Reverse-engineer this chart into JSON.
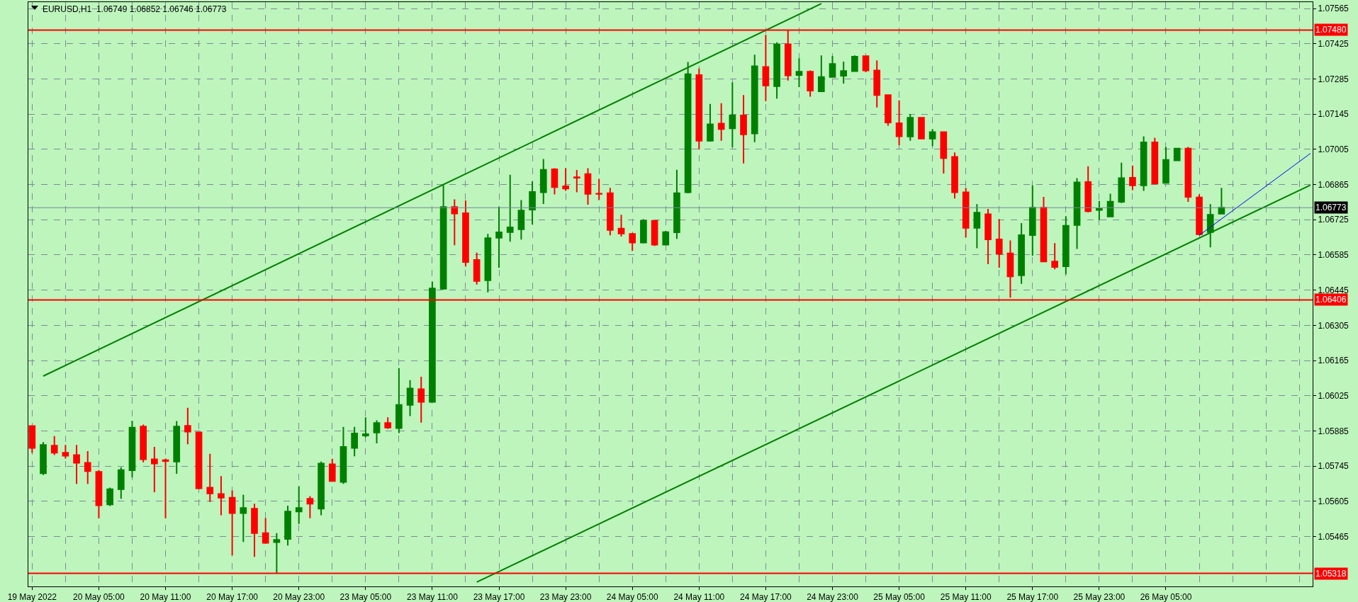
{
  "chart_data": {
    "type": "candlestick",
    "title": "EURUSD,H1  1.06749 1.06852 1.06746 1.06773",
    "categories": [
      "19 May 2022",
      null,
      null,
      null,
      null,
      null,
      "20 May 05:00",
      null,
      null,
      null,
      null,
      null,
      "20 May 11:00",
      null,
      null,
      null,
      null,
      null,
      "20 May 17:00",
      null,
      null,
      null,
      null,
      null,
      "20 May 23:00",
      null,
      null,
      null,
      null,
      null,
      "23 May 05:00",
      null,
      null,
      null,
      null,
      null,
      "23 May 11:00",
      null,
      null,
      null,
      null,
      null,
      "23 May 17:00",
      null,
      null,
      null,
      null,
      null,
      "23 May 23:00",
      null,
      null,
      null,
      null,
      null,
      "24 May 05:00",
      null,
      null,
      null,
      null,
      null,
      "24 May 11:00",
      null,
      null,
      null,
      null,
      null,
      "24 May 17:00",
      null,
      null,
      null,
      null,
      null,
      "24 May 23:00",
      null,
      null,
      null,
      null,
      null,
      "25 May 05:00",
      null,
      null,
      null,
      null,
      null,
      "25 May 11:00",
      null,
      null,
      null,
      null,
      null,
      "25 May 17:00",
      null,
      null,
      null,
      null,
      null,
      "25 May 23:00",
      null,
      null,
      null,
      null,
      null,
      "26 May 05:00",
      null,
      null,
      null,
      null,
      null,
      null,
      null,
      null,
      null,
      null,
      null,
      null,
      null
    ],
    "colors": [
      "#ff0000",
      "#008000",
      "#ff0000",
      "#ff0000",
      "#ff0000",
      "#ff0000",
      "#ff0000",
      "#008000",
      "#008000",
      "#008000",
      "#ff0000",
      "#ff0000",
      "#ff0000",
      "#008000",
      "#ff0000",
      "#ff0000",
      "#ff0000",
      "#ff0000",
      "#ff0000",
      "#008000",
      "#ff0000",
      "#ff0000",
      "#008000",
      "#008000",
      "#008000",
      "#ff0000",
      "#008000",
      "#ff0000",
      "#008000",
      "#008000",
      "#008000",
      "#008000",
      "#ff0000",
      "#008000",
      "#008000",
      "#ff0000",
      "#008000",
      "#008000",
      "#ff0000",
      "#ff0000",
      "#ff0000",
      "#008000",
      "#008000",
      "#008000",
      "#008000",
      "#008000",
      "#008000",
      "#ff0000",
      "#ff0000",
      "#ff0000",
      "#ff0000",
      "#ff0000",
      "#ff0000",
      "#ff0000",
      "#ff0000",
      "#008000",
      "#ff0000",
      "#008000",
      "#008000",
      "#008000",
      "#ff0000",
      "#008000",
      "#ff0000",
      "#008000",
      "#ff0000",
      "#008000",
      "#ff0000",
      "#008000",
      "#ff0000",
      "#008000",
      "#ff0000",
      "#008000",
      "#008000",
      "#008000",
      "#008000",
      "#ff0000",
      "#ff0000",
      "#ff0000",
      "#ff0000",
      "#008000",
      "#ff0000",
      "#008000",
      "#ff0000",
      "#ff0000",
      "#ff0000",
      "#008000",
      "#ff0000",
      "#ff0000",
      "#ff0000",
      "#008000",
      "#008000",
      "#ff0000",
      "#ff0000",
      "#008000",
      "#008000",
      "#ff0000",
      "#008000",
      "#008000",
      "#008000",
      "#ff0000",
      "#008000",
      "#ff0000",
      "#008000",
      "#008000",
      "#ff0000",
      "#ff0000",
      "#008000",
      "#008000",
      null,
      null,
      null,
      null,
      null,
      null,
      null,
      null
    ],
    "ohlc": [
      [
        1.05904,
        1.05906,
        1.05797,
        1.05817
      ],
      [
        1.05716,
        1.0584,
        1.05709,
        1.05829
      ],
      [
        1.05826,
        1.05864,
        1.05789,
        1.05798
      ],
      [
        1.05798,
        1.05829,
        1.05775,
        1.05786
      ],
      [
        1.05789,
        1.05829,
        1.05674,
        1.05758
      ],
      [
        1.05758,
        1.05804,
        1.05674,
        1.05725
      ],
      [
        1.05722,
        1.05729,
        1.05537,
        1.05589
      ],
      [
        1.05592,
        1.05659,
        1.05586,
        1.05653
      ],
      [
        1.05653,
        1.0574,
        1.05615,
        1.05729
      ],
      [
        1.05728,
        1.05925,
        1.057,
        1.05898
      ],
      [
        1.05902,
        1.0591,
        1.0576,
        1.05772
      ],
      [
        1.05772,
        1.05821,
        1.05641,
        1.05755
      ],
      [
        1.05768,
        1.05775,
        1.05537,
        1.05765
      ],
      [
        1.05763,
        1.05924,
        1.05714,
        1.05902
      ],
      [
        1.05905,
        1.05977,
        1.05832,
        1.05882
      ],
      [
        1.05879,
        1.05882,
        1.05653,
        1.05656
      ],
      [
        1.05659,
        1.05794,
        1.05602,
        1.05636
      ],
      [
        1.05634,
        1.05705,
        1.05549,
        1.05619
      ],
      [
        1.05619,
        1.05648,
        1.0539,
        1.05558
      ],
      [
        1.05558,
        1.05631,
        1.05443,
        1.05578
      ],
      [
        1.05575,
        1.05595,
        1.05384,
        1.05478
      ],
      [
        1.05478,
        1.05538,
        1.05436,
        1.05439
      ],
      [
        1.05442,
        1.05478,
        1.05318,
        1.05451
      ],
      [
        1.05455,
        1.05587,
        1.05429,
        1.05564
      ],
      [
        1.05564,
        1.05665,
        1.05515,
        1.05578
      ],
      [
        1.05615,
        1.05625,
        1.05537,
        1.05595
      ],
      [
        1.05575,
        1.05763,
        1.05549,
        1.05755
      ],
      [
        1.05752,
        1.05774,
        1.05683,
        1.05685
      ],
      [
        1.05682,
        1.05901,
        1.05674,
        1.05821
      ],
      [
        1.05817,
        1.05901,
        1.05784,
        1.05875
      ],
      [
        1.05866,
        1.05939,
        1.05859,
        1.05872
      ],
      [
        1.05878,
        1.05927,
        1.05835,
        1.05916
      ],
      [
        1.05916,
        1.05939,
        1.05893,
        1.05898
      ],
      [
        1.05896,
        1.06135,
        1.05876,
        1.05988
      ],
      [
        1.05988,
        1.06087,
        1.05944,
        1.06054
      ],
      [
        1.06051,
        1.061,
        1.05918,
        1.06
      ],
      [
        1.06,
        1.06479,
        1.06,
        1.06452
      ],
      [
        1.0645,
        1.06863,
        1.06447,
        1.06776
      ],
      [
        1.06776,
        1.06806,
        1.06624,
        1.0675
      ],
      [
        1.06751,
        1.06802,
        1.06539,
        1.06557
      ],
      [
        1.06565,
        1.06594,
        1.06467,
        1.06481
      ],
      [
        1.06484,
        1.06669,
        1.06436,
        1.06652
      ],
      [
        1.06653,
        1.06777,
        1.06534,
        1.06675
      ],
      [
        1.06676,
        1.06904,
        1.06638,
        1.06695
      ],
      [
        1.06687,
        1.06803,
        1.06646,
        1.06762
      ],
      [
        1.06765,
        1.06877,
        1.06707,
        1.06836
      ],
      [
        1.06834,
        1.06967,
        1.06788,
        1.06924
      ],
      [
        1.06926,
        1.0693,
        1.06826,
        1.06855
      ],
      [
        1.06858,
        1.0693,
        1.0684,
        1.06849
      ],
      [
        1.06894,
        1.06923,
        1.06834,
        1.06892
      ],
      [
        1.06907,
        1.0693,
        1.06785,
        1.06828
      ],
      [
        1.06829,
        1.06888,
        1.06803,
        1.06828
      ],
      [
        1.06831,
        1.06852,
        1.06663,
        1.06684
      ],
      [
        1.0669,
        1.06745,
        1.06658,
        1.0667
      ],
      [
        1.06669,
        1.06673,
        1.06601,
        1.06634
      ],
      [
        1.06634,
        1.06727,
        1.06631,
        1.06721
      ],
      [
        1.06721,
        1.06724,
        1.06621,
        1.06626
      ],
      [
        1.06626,
        1.06681,
        1.06624,
        1.06676
      ],
      [
        1.06675,
        1.06924,
        1.06649,
        1.06831
      ],
      [
        1.06834,
        1.07353,
        1.0683,
        1.07304
      ],
      [
        1.07301,
        1.07327,
        1.07005,
        1.07039
      ],
      [
        1.07039,
        1.07186,
        1.07036,
        1.07105
      ],
      [
        1.07108,
        1.07189,
        1.07039,
        1.07086
      ],
      [
        1.07089,
        1.07272,
        1.07013,
        1.0714
      ],
      [
        1.0714,
        1.07221,
        1.06949,
        1.07065
      ],
      [
        1.07068,
        1.07382,
        1.07034,
        1.07336
      ],
      [
        1.07333,
        1.07461,
        1.07197,
        1.07259
      ],
      [
        1.07256,
        1.07431,
        1.07207,
        1.07423
      ],
      [
        1.07423,
        1.0748,
        1.07279,
        1.07299
      ],
      [
        1.07301,
        1.07368,
        1.07253,
        1.07314
      ],
      [
        1.07314,
        1.07319,
        1.07215,
        1.07239
      ],
      [
        1.07236,
        1.07379,
        1.07235,
        1.07293
      ],
      [
        1.07293,
        1.07377,
        1.07291,
        1.07345
      ],
      [
        1.07298,
        1.07354,
        1.07267,
        1.07317
      ],
      [
        1.07316,
        1.07379,
        1.07314,
        1.07374
      ],
      [
        1.07376,
        1.07377,
        1.07313,
        1.07319
      ],
      [
        1.07319,
        1.07359,
        1.07172,
        1.07221
      ],
      [
        1.07221,
        1.07224,
        1.07099,
        1.07112
      ],
      [
        1.07109,
        1.072,
        1.07022,
        1.07057
      ],
      [
        1.07056,
        1.07146,
        1.07039,
        1.07131
      ],
      [
        1.07131,
        1.07134,
        1.07045,
        1.07048
      ],
      [
        1.07048,
        1.07086,
        1.07018,
        1.07074
      ],
      [
        1.07074,
        1.07076,
        1.06909,
        1.0697
      ],
      [
        1.06975,
        1.06993,
        1.0681,
        1.06834
      ],
      [
        1.06834,
        1.06852,
        1.06655,
        1.06693
      ],
      [
        1.06693,
        1.06787,
        1.06612,
        1.06753
      ],
      [
        1.06747,
        1.06768,
        1.06548,
        1.06647
      ],
      [
        1.06647,
        1.06727,
        1.06534,
        1.06589
      ],
      [
        1.06591,
        1.06643,
        1.06415,
        1.065
      ],
      [
        1.06504,
        1.06712,
        1.0647,
        1.06664
      ],
      [
        1.06664,
        1.06862,
        1.06582,
        1.06773
      ],
      [
        1.06773,
        1.06816,
        1.06556,
        1.06559
      ],
      [
        1.06559,
        1.06632,
        1.06528,
        1.06537
      ],
      [
        1.0654,
        1.06739,
        1.06508,
        1.06701
      ],
      [
        1.06704,
        1.06891,
        1.06609,
        1.06874
      ],
      [
        1.06875,
        1.06938,
        1.06754,
        1.06759
      ],
      [
        1.06764,
        1.068,
        1.06724,
        1.06768
      ],
      [
        1.06738,
        1.06829,
        1.06735,
        1.06797
      ],
      [
        1.06796,
        1.06952,
        1.06791,
        1.06891
      ],
      [
        1.06892,
        1.06941,
        1.06843,
        1.06862
      ],
      [
        1.06862,
        1.07057,
        1.0684,
        1.07033
      ],
      [
        1.07033,
        1.07051,
        1.06866,
        1.06869
      ],
      [
        1.06872,
        1.07015,
        1.06871,
        1.06963
      ],
      [
        1.06961,
        1.07011,
        1.06958,
        1.07008
      ],
      [
        1.07008,
        1.07015,
        1.06796,
        1.06816
      ],
      [
        1.06814,
        1.06826,
        1.06663,
        1.06667
      ],
      [
        1.06676,
        1.06787,
        1.06615,
        1.06745
      ],
      [
        1.06749,
        1.06852,
        1.06746,
        1.06773
      ],
      null,
      null,
      null,
      null,
      null,
      null,
      null,
      null
    ],
    "series": [
      {
        "type": "line",
        "color": "#008000",
        "values": [
          null,
          1.06103,
          null,
          null,
          null,
          null,
          null,
          null,
          null,
          null,
          null,
          null,
          null,
          null,
          null,
          null,
          null,
          null,
          null,
          null,
          null,
          null,
          null,
          null,
          null,
          null,
          null,
          null,
          null,
          null,
          null,
          null,
          null,
          null,
          null,
          null,
          null,
          null,
          null,
          null,
          null,
          null,
          null,
          null,
          null,
          null,
          null,
          null,
          null,
          null,
          null,
          null,
          null,
          null,
          null,
          null,
          null,
          null,
          null,
          null,
          null,
          null,
          null,
          null,
          null,
          null,
          null,
          null,
          null,
          null,
          null,
          1.07585,
          null,
          null,
          null,
          null,
          null,
          null,
          null,
          null,
          null,
          null,
          null,
          null,
          null,
          null,
          null,
          null,
          null,
          null,
          null,
          null,
          null,
          null,
          null,
          null,
          null,
          null,
          null,
          null,
          null,
          null,
          null,
          null,
          null,
          null,
          null,
          null,
          null,
          null,
          null,
          null,
          null,
          null,
          null,
          null
        ]
      },
      {
        "type": "line",
        "color": "#008000",
        "values": [
          null,
          null,
          null,
          null,
          null,
          null,
          null,
          null,
          null,
          null,
          null,
          null,
          null,
          null,
          null,
          null,
          null,
          null,
          null,
          null,
          null,
          null,
          null,
          null,
          null,
          null,
          null,
          null,
          null,
          null,
          null,
          null,
          null,
          null,
          null,
          null,
          null,
          null,
          null,
          null,
          1.05283,
          null,
          null,
          null,
          null,
          null,
          null,
          null,
          null,
          null,
          null,
          null,
          null,
          null,
          null,
          null,
          null,
          null,
          null,
          null,
          null,
          null,
          null,
          null,
          null,
          null,
          null,
          null,
          null,
          null,
          null,
          null,
          null,
          null,
          null,
          null,
          null,
          null,
          null,
          null,
          null,
          null,
          null,
          null,
          null,
          null,
          null,
          null,
          null,
          null,
          null,
          null,
          null,
          null,
          null,
          null,
          null,
          null,
          null,
          null,
          null,
          null,
          null,
          null,
          null,
          null,
          null,
          null,
          null,
          null,
          null,
          null,
          null,
          null,
          null,
          1.06863
        ]
      },
      {
        "type": "line",
        "color": "#0000ff",
        "values": [
          null,
          null,
          null,
          null,
          null,
          null,
          null,
          null,
          null,
          null,
          null,
          null,
          null,
          null,
          null,
          null,
          null,
          null,
          null,
          null,
          null,
          null,
          null,
          null,
          null,
          null,
          null,
          null,
          null,
          null,
          null,
          null,
          null,
          null,
          null,
          null,
          null,
          null,
          null,
          null,
          null,
          null,
          null,
          null,
          null,
          null,
          null,
          null,
          null,
          null,
          null,
          null,
          null,
          null,
          null,
          null,
          null,
          null,
          null,
          null,
          null,
          null,
          null,
          null,
          null,
          null,
          null,
          null,
          null,
          null,
          null,
          null,
          null,
          null,
          null,
          null,
          null,
          null,
          null,
          null,
          null,
          null,
          null,
          null,
          null,
          null,
          null,
          null,
          null,
          null,
          null,
          null,
          null,
          null,
          null,
          null,
          null,
          null,
          null,
          null,
          null,
          null,
          null,
          null,
          null,
          1.06663,
          null,
          null,
          null,
          null,
          null,
          null,
          null,
          null,
          null,
          1.06989
        ]
      }
    ],
    "ref_lines": [
      {
        "axis": "y",
        "value": 1.0748,
        "label": "1.07480",
        "color": "#ff0000"
      },
      {
        "axis": "y",
        "value": 1.06406,
        "label": "1.06406",
        "color": "#ff0000"
      },
      {
        "axis": "y",
        "value": 1.05318,
        "label": "1.05318",
        "color": "#ff0000"
      },
      {
        "axis": "y",
        "value": 1.06773,
        "label": "1.06773",
        "color": "#778899"
      }
    ],
    "ylim": [
      1.05266,
      1.07591
    ],
    "yticks": [
      1.05465,
      1.05605,
      1.05745,
      1.05885,
      1.06025,
      1.06165,
      1.06305,
      1.06445,
      1.06585,
      1.06725,
      1.06865,
      1.07005,
      1.07145,
      1.07285,
      1.07425,
      1.07565
    ],
    "grid": true
  }
}
